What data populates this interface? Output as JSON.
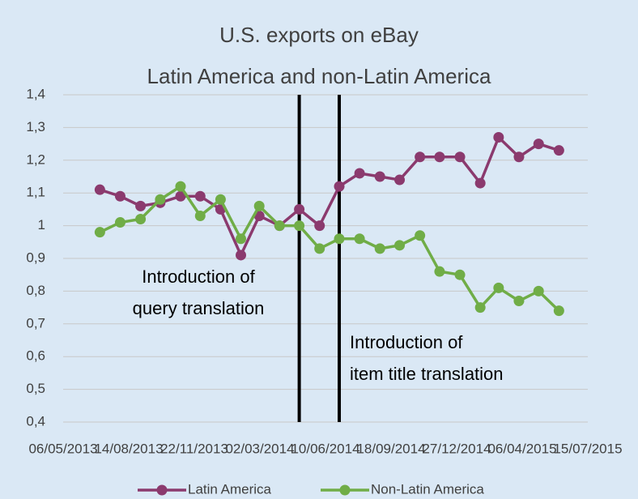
{
  "chart_data": {
    "type": "line",
    "title": "U.S. exports on eBay",
    "subtitle": "Latin America and non-Latin America",
    "x": [
      "01/07/2013",
      "01/08/2013",
      "01/09/2013",
      "01/10/2013",
      "01/11/2013",
      "01/12/2013",
      "01/01/2014",
      "01/02/2014",
      "01/03/2014",
      "01/04/2014",
      "01/05/2014",
      "01/06/2014",
      "01/07/2014",
      "01/08/2014",
      "01/09/2014",
      "01/10/2014",
      "01/11/2014",
      "01/12/2014",
      "01/01/2015",
      "01/02/2015",
      "01/03/2015",
      "01/04/2015",
      "01/05/2015",
      "01/06/2015"
    ],
    "series": [
      {
        "name": "Latin America",
        "color": "#8b3a6e",
        "values": [
          1.11,
          1.09,
          1.06,
          1.07,
          1.09,
          1.09,
          1.05,
          0.91,
          1.03,
          1.0,
          1.05,
          1.0,
          1.12,
          1.16,
          1.15,
          1.14,
          1.21,
          1.21,
          1.21,
          1.13,
          1.27,
          1.21,
          1.25,
          1.23
        ]
      },
      {
        "name": "Non-Latin America",
        "color": "#70ad47",
        "values": [
          0.98,
          1.01,
          1.02,
          1.08,
          1.12,
          1.03,
          1.08,
          0.96,
          1.06,
          1.0,
          1.0,
          0.93,
          0.96,
          0.96,
          0.93,
          0.94,
          0.97,
          0.86,
          0.85,
          0.75,
          0.81,
          0.77,
          0.8,
          0.74
        ]
      }
    ],
    "xlim": [
      "06/05/2013",
      "15/07/2015"
    ],
    "xticks": [
      "06/05/2013",
      "14/08/2013",
      "22/11/2013",
      "02/03/2014",
      "10/06/2014",
      "18/09/2014",
      "27/12/2014",
      "06/04/2015",
      "15/07/2015"
    ],
    "ylim": [
      0.4,
      1.4
    ],
    "yticks": [
      {
        "value": 0.4,
        "label": "0,4"
      },
      {
        "value": 0.5,
        "label": "0,5"
      },
      {
        "value": 0.6,
        "label": "0,6"
      },
      {
        "value": 0.7,
        "label": "0,7"
      },
      {
        "value": 0.8,
        "label": "0,8"
      },
      {
        "value": 0.9,
        "label": "0,9"
      },
      1,
      {
        "value": 1.1,
        "label": "1,1"
      },
      {
        "value": 1.2,
        "label": "1,2"
      },
      {
        "value": 1.3,
        "label": "1,3"
      },
      {
        "value": 1.4,
        "label": "1,4"
      }
    ],
    "grid": true,
    "legend": "bottom",
    "vlines": [
      "01/05/2014",
      "01/07/2014"
    ],
    "annotations": [
      [
        "Introduction of",
        "query translation"
      ],
      [
        "Introduction of",
        "item title translation"
      ]
    ]
  }
}
